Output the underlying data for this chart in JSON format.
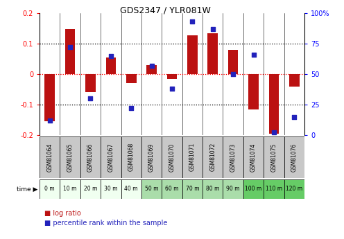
{
  "title": "GDS2347 / YLR081W",
  "samples": [
    "GSM81064",
    "GSM81065",
    "GSM81066",
    "GSM81067",
    "GSM81068",
    "GSM81069",
    "GSM81070",
    "GSM81071",
    "GSM81072",
    "GSM81073",
    "GSM81074",
    "GSM81075",
    "GSM81076"
  ],
  "time_labels": [
    "0 m",
    "10 m",
    "20 m",
    "30 m",
    "40 m",
    "50 m",
    "60 m",
    "70 m",
    "80 m",
    "90 m",
    "100 m",
    "110 m",
    "120 m"
  ],
  "log_ratio": [
    -0.155,
    0.148,
    -0.06,
    0.055,
    -0.03,
    0.03,
    -0.015,
    0.128,
    0.135,
    0.08,
    -0.115,
    -0.195,
    -0.04
  ],
  "percentile_rank": [
    12,
    72,
    30,
    65,
    22,
    57,
    38,
    93,
    87,
    50,
    66,
    2,
    15
  ],
  "bar_color": "#bb1111",
  "dot_color": "#2222bb",
  "ylim": [
    -0.2,
    0.2
  ],
  "y2lim": [
    0,
    100
  ],
  "yticks": [
    -0.2,
    -0.1,
    0,
    0.1,
    0.2
  ],
  "y2ticks": [
    0,
    25,
    50,
    75,
    100
  ],
  "hlines_black": [
    0.1,
    -0.1
  ],
  "hline_red": 0.0,
  "sample_row_color": "#c8c8c8",
  "time_colors_white": [
    "#ffffff",
    "#ffffff",
    "#ffffff",
    "#ffffff",
    "#ffffff"
  ],
  "time_colors_light": [
    "#d0f0d0",
    "#d0f0d0",
    "#d0f0d0",
    "#d0f0d0",
    "#d0f0d0"
  ],
  "time_colors_green": [
    "#66cc66",
    "#66cc66",
    "#66cc66"
  ],
  "legend_log_ratio": "log ratio",
  "legend_percentile": "percentile rank within the sample",
  "bar_width": 0.5
}
